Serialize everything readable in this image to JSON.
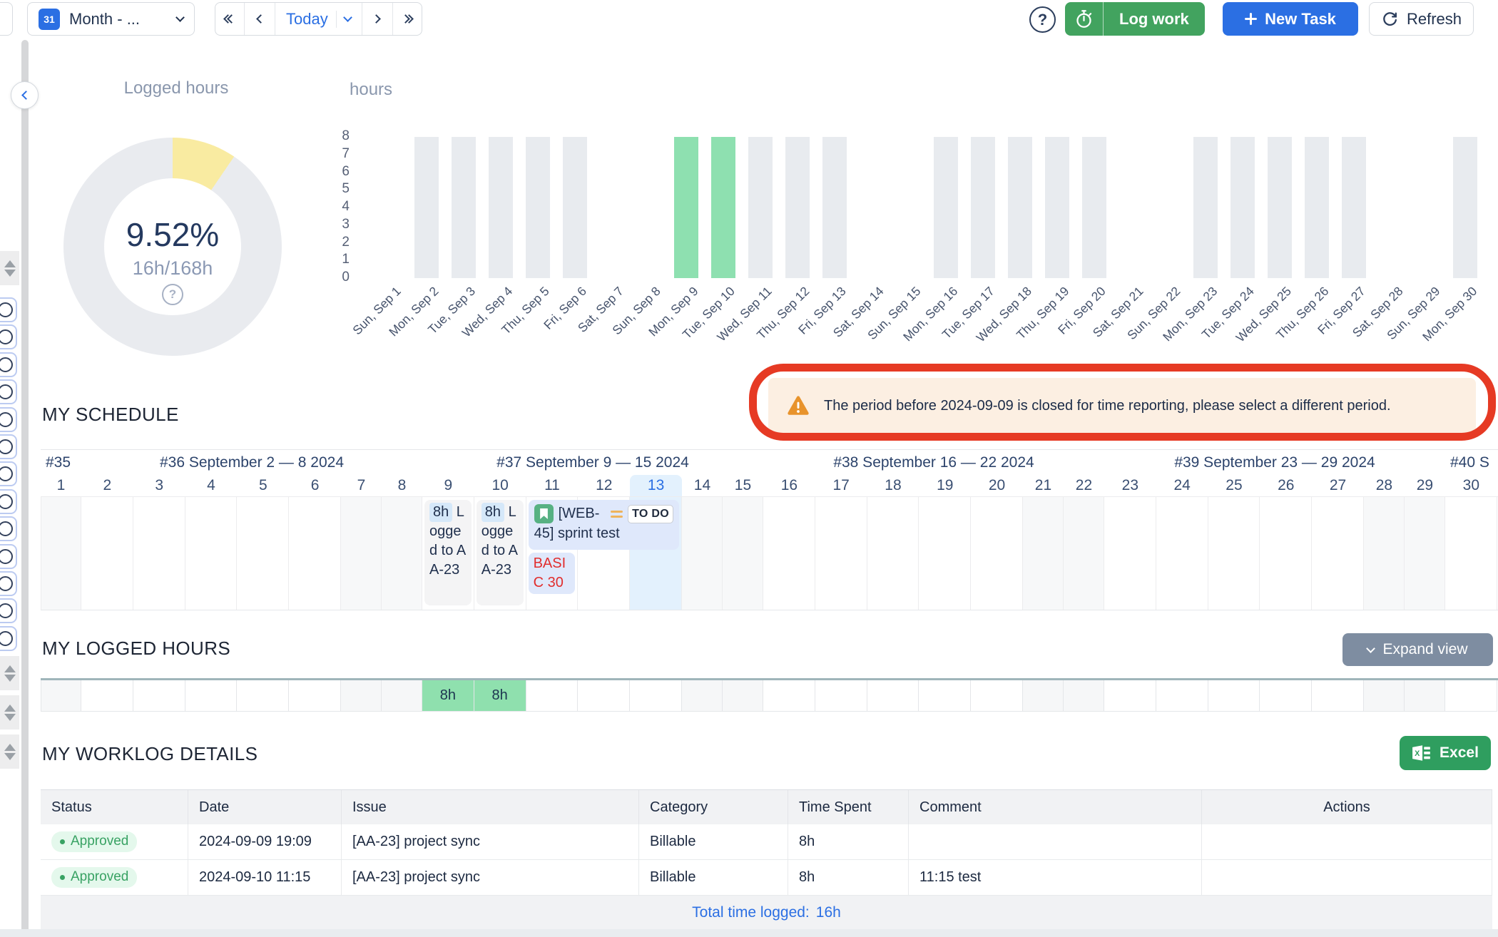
{
  "toolbar": {
    "calendar_icon_text": "31",
    "period_label": "Month - ...",
    "today_label": "Today",
    "log_work_label": "Log work",
    "new_task_label": "New Task",
    "refresh_label": "Refresh",
    "icons": [
      "calendar-icon",
      "chevron-down-icon",
      "jump-prev-icon",
      "prev-icon",
      "next-icon",
      "jump-next-icon",
      "help-icon",
      "stopwatch-icon",
      "plus-icon",
      "refresh-icon"
    ]
  },
  "summary": {
    "title": "Logged hours",
    "percent": "9.52%",
    "percent_value": 9.52,
    "ratio": "16h/168h",
    "help_icon": "?",
    "donut_colors": {
      "filled": "#f9eba1",
      "rest": "#e9ebef"
    }
  },
  "chart_data": {
    "type": "bar",
    "title": "hours",
    "ylabel_ticks": [
      8,
      7,
      6,
      5,
      4,
      3,
      2,
      1,
      0
    ],
    "ylim": [
      0,
      8
    ],
    "categories": [
      "Sun, Sep 1",
      "Mon, Sep 2",
      "Tue, Sep 3",
      "Wed, Sep 4",
      "Thu, Sep 5",
      "Fri, Sep 6",
      "Sat, Sep 7",
      "Sun, Sep 8",
      "Mon, Sep 9",
      "Tue, Sep 10",
      "Wed, Sep 11",
      "Thu, Sep 12",
      "Fri, Sep 13",
      "Sat, Sep 14",
      "Sun, Sep 15",
      "Mon, Sep 16",
      "Tue, Sep 17",
      "Wed, Sep 18",
      "Thu, Sep 19",
      "Fri, Sep 20",
      "Sat, Sep 21",
      "Sun, Sep 22",
      "Mon, Sep 23",
      "Tue, Sep 24",
      "Wed, Sep 25",
      "Thu, Sep 26",
      "Fri, Sep 27",
      "Sat, Sep 28",
      "Sun, Sep 29",
      "Mon, Sep 30"
    ],
    "values": [
      0,
      8,
      8,
      8,
      8,
      8,
      0,
      0,
      8,
      8,
      8,
      8,
      8,
      0,
      0,
      8,
      8,
      8,
      8,
      8,
      0,
      0,
      8,
      8,
      8,
      8,
      8,
      0,
      0,
      8
    ],
    "highlight_indices": [
      8,
      9
    ],
    "bar_color": "#e8ebef",
    "highlight_color": "#8ee0b0",
    "grid": false,
    "legend": false
  },
  "warning": {
    "text": "The period before 2024-09-09 is closed for time reporting, please select a different period.",
    "icon": "warning-triangle-icon",
    "annotation_color": "#e63a24"
  },
  "schedule": {
    "title": "MY SCHEDULE",
    "weeks": [
      {
        "label": "#35",
        "days": [
          1
        ]
      },
      {
        "label": "#36 September 2 — 8 2024",
        "days": [
          2,
          3,
          4,
          5,
          6,
          7,
          8
        ]
      },
      {
        "label": "#37 September 9 — 15 2024",
        "days": [
          9,
          10,
          11,
          12,
          13,
          14,
          15
        ]
      },
      {
        "label": "#38 September 16 — 22 2024",
        "days": [
          16,
          17,
          18,
          19,
          20,
          21,
          22
        ]
      },
      {
        "label": "#39 September 23 — 29 2024",
        "days": [
          23,
          24,
          25,
          26,
          27,
          28,
          29
        ]
      },
      {
        "label": "#40 S",
        "days": [
          30
        ]
      }
    ],
    "today": 13,
    "weekend_days": [
      1,
      7,
      8,
      14,
      15,
      21,
      22,
      28,
      29
    ],
    "cards": [
      {
        "day": 9,
        "span": 1,
        "type": "log",
        "time": "8h",
        "text": "Logged to AA-23"
      },
      {
        "day": 10,
        "span": 1,
        "type": "log",
        "time": "8h",
        "text": "Logged to AA-23"
      },
      {
        "day": 11,
        "span": 3,
        "type": "task",
        "text": "[WEB-45] sprint test",
        "status_badge": "TO DO",
        "icons": [
          "bookmark-icon",
          "priority-medium-icon"
        ]
      },
      {
        "day": 11,
        "span": 1,
        "type": "event",
        "text": "BASIC 30"
      }
    ]
  },
  "logged_hours": {
    "title": "MY LOGGED HOURS",
    "expand_label": "Expand view",
    "cells": [
      {
        "day": 9,
        "value": "8h"
      },
      {
        "day": 10,
        "value": "8h"
      }
    ]
  },
  "worklog": {
    "title": "MY WORKLOG DETAILS",
    "excel_label": "Excel",
    "columns": [
      "Status",
      "Date",
      "Issue",
      "Category",
      "Time Spent",
      "Comment",
      "Actions"
    ],
    "rows": [
      {
        "status": "Approved",
        "date": "2024-09-09 19:09",
        "issue": "[AA-23] project sync",
        "category": "Billable",
        "time_spent": "8h",
        "comment": "",
        "actions": ""
      },
      {
        "status": "Approved",
        "date": "2024-09-10 11:15",
        "issue": "[AA-23] project sync",
        "category": "Billable",
        "time_spent": "8h",
        "comment": "11:15 test",
        "actions": ""
      }
    ],
    "total_label": "Total time logged:",
    "total_value": "16h"
  }
}
